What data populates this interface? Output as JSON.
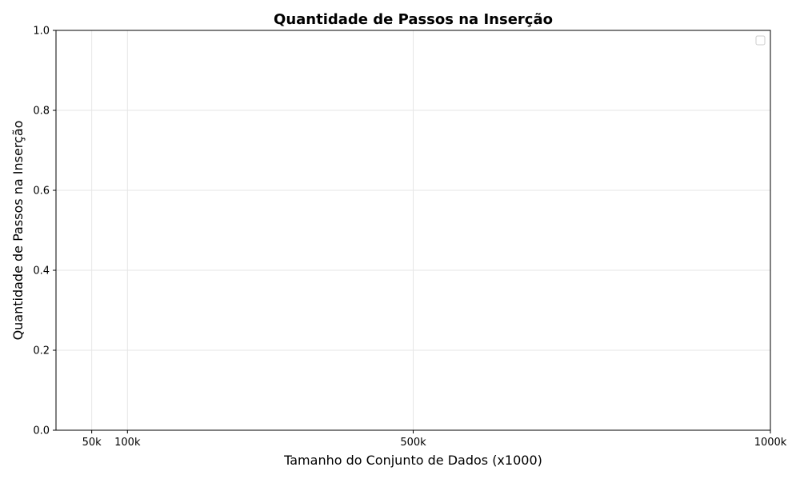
{
  "chart_data": {
    "type": "line",
    "title": "Quantidade de Passos na Inserção",
    "xlabel": "Tamanho do Conjunto de Dados (x1000)",
    "ylabel": "Quantidade de Passos na Inserção",
    "xlim": [
      0,
      1000
    ],
    "ylim": [
      0,
      1
    ],
    "x_ticks": [
      {
        "value": 50,
        "label": "50k"
      },
      {
        "value": 100,
        "label": "100k"
      },
      {
        "value": 500,
        "label": "500k"
      },
      {
        "value": 1000,
        "label": "1000k"
      }
    ],
    "y_ticks": [
      {
        "value": 0,
        "label": "0.0"
      },
      {
        "value": 0.2,
        "label": "0.2"
      },
      {
        "value": 0.4,
        "label": "0.4"
      },
      {
        "value": 0.6,
        "label": "0.6"
      },
      {
        "value": 0.8,
        "label": "0.8"
      },
      {
        "value": 1.0,
        "label": "1.0"
      }
    ],
    "grid": true,
    "legend": {
      "placement": "top-right",
      "entries": []
    },
    "series": []
  },
  "colors": {
    "axis": "#000000",
    "grid": "#e6e6e6",
    "legend_border": "#cccccc"
  }
}
